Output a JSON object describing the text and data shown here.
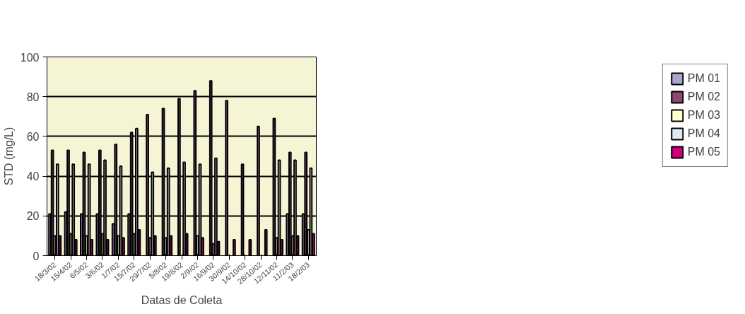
{
  "chart_data": {
    "type": "bar",
    "xlabel": "Datas de Coleta",
    "ylabel": "STD (mg/L)",
    "categories": [
      "18/3/02",
      "15/4/02",
      "6/5/02",
      "3/6/02",
      "1/7/02",
      "15/7/02",
      "29/7/02",
      "5/8/02",
      "19/8/02",
      "2/9/02",
      "16/9/02",
      "30/9/02",
      "14/10/02",
      "28/10/02",
      "12/11/02",
      "11/2/03",
      "18/2/03"
    ],
    "series": [
      {
        "name": "PM 01",
        "color": "#a9a6d0",
        "values": [
          21,
          22,
          21,
          21,
          16,
          21,
          null,
          null,
          null,
          null,
          null,
          null,
          null,
          null,
          null,
          21,
          21
        ]
      },
      {
        "name": "PM 02",
        "color": "#8b4a6b",
        "values": [
          53,
          53,
          52,
          53,
          56,
          62,
          71,
          74,
          79,
          83,
          88,
          78,
          46,
          65,
          69,
          52,
          52
        ]
      },
      {
        "name": "PM 03",
        "color": "#ffffcc",
        "values": [
          10,
          11,
          10,
          11,
          10,
          11,
          9,
          9,
          null,
          10,
          6,
          null,
          null,
          null,
          9,
          10,
          13
        ]
      },
      {
        "name": "PM 04",
        "color": "#dde9f5",
        "values": [
          46,
          46,
          46,
          48,
          45,
          64,
          42,
          44,
          47,
          46,
          49,
          null,
          null,
          null,
          48,
          48,
          44
        ]
      },
      {
        "name": "PM 05",
        "color": "#cc0077",
        "values": [
          10,
          8,
          8,
          8,
          9,
          13,
          10,
          10,
          11,
          9,
          7,
          8,
          8,
          13,
          8,
          10,
          11
        ]
      }
    ],
    "ylim": [
      0,
      100
    ],
    "yticks": [
      0,
      20,
      40,
      60,
      80,
      100
    ],
    "grid": "y",
    "legend": "right"
  }
}
